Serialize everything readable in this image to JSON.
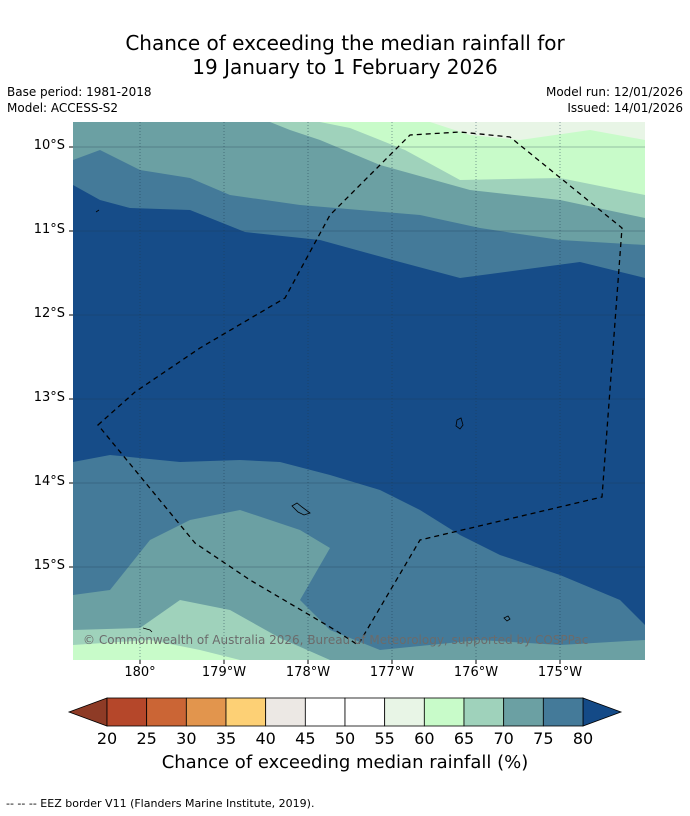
{
  "title": {
    "line1": "Chance of exceeding the median rainfall for",
    "line2": "19 January to 1 February 2026"
  },
  "meta": {
    "base_period": "Base period: 1981-2018",
    "model": "Model: ACCESS-S2",
    "model_run": "Model run: 12/01/2026",
    "issued": "Issued: 14/01/2026"
  },
  "map": {
    "lat_labels": [
      "10°S",
      "11°S",
      "12°S",
      "13°S",
      "14°S",
      "15°S"
    ],
    "lon_labels": [
      "180°",
      "179°W",
      "178°W",
      "177°W",
      "176°W",
      "175°W"
    ],
    "copyright": "© Commonwealth of Australia 2026, Bureau of Meteorology, supported by COSPPac"
  },
  "colorbar": {
    "ticks": [
      "20",
      "25",
      "30",
      "35",
      "40",
      "45",
      "50",
      "55",
      "60",
      "65",
      "70",
      "75",
      "80"
    ],
    "colors": [
      "#b5472a",
      "#cb6535",
      "#e2954d",
      "#fdd075",
      "#ece8e4",
      "#ffffff",
      "#ffffff",
      "#e8f5e6",
      "#c8fbc9",
      "#9fd2bb",
      "#6ba0a3",
      "#447a99",
      "#164c88"
    ],
    "low_color": "#8e3b26",
    "high_color": "#144a87",
    "label": "Chance of exceeding median rainfall (%)"
  },
  "legend": {
    "eez_note": "--  --  -- EEZ border V11 (Flanders Marine Institute, 2019)."
  }
}
